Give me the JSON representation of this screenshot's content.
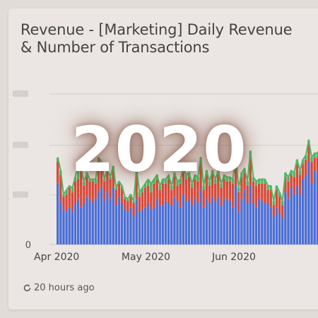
{
  "card": {
    "title_line1": "Revenue - [Marketing] Daily Revenue",
    "title_line2": "& Number of Transactions",
    "refresh_text": "20 hours ago",
    "refresh_icon": "refresh-icon"
  },
  "overlay": {
    "text": "2020"
  },
  "colors": {
    "background": "#e2dcd8",
    "card": "#ebe6e3",
    "bar_blue": "#4c6fd6",
    "bar_red": "#d94a3a",
    "line_green": "#4fb865",
    "gridline": "#d6cfcb"
  },
  "chart_data": {
    "type": "bar",
    "stacked": true,
    "x_tick_labels": [
      "Apr 2020",
      "May 2020",
      "Jun 2020"
    ],
    "y_tick_labels": [
      "0"
    ],
    "grid": true,
    "series": [],
    "blue_values": [
      28,
      20,
      16,
      15,
      17,
      15,
      19,
      21,
      17,
      19,
      22,
      21,
      19,
      21,
      24,
      26,
      20,
      24,
      21,
      26,
      18,
      22,
      19,
      16,
      15,
      17,
      13,
      21,
      15,
      16,
      17,
      19,
      16,
      17,
      21,
      18,
      18,
      20,
      19,
      18,
      22,
      20,
      17,
      23,
      20,
      21,
      18,
      21,
      19,
      25,
      17,
      21,
      19,
      22,
      20,
      22,
      18,
      21,
      21,
      20,
      17,
      27,
      15,
      21,
      25,
      19,
      27,
      19,
      17,
      21,
      20,
      19,
      19,
      17,
      13,
      17,
      14,
      12,
      24,
      21,
      26,
      23,
      27,
      23,
      30,
      32,
      38,
      28,
      34,
      33,
      33,
      32
    ],
    "red_values": [
      10,
      12,
      6,
      8,
      9,
      9,
      10,
      9,
      17,
      8,
      9,
      8,
      10,
      7,
      15,
      11,
      9,
      10,
      9,
      8,
      7,
      6,
      7,
      5,
      5,
      5,
      6,
      13,
      7,
      8,
      9,
      8,
      8,
      11,
      9,
      7,
      10,
      8,
      11,
      7,
      9,
      7,
      11,
      10,
      10,
      10,
      8,
      9,
      10,
      13,
      8,
      11,
      8,
      10,
      8,
      10,
      8,
      9,
      8,
      9,
      11,
      12,
      9,
      10,
      8,
      8,
      14,
      10,
      10,
      7,
      8,
      9,
      6,
      8,
      5,
      8,
      8,
      6,
      7,
      8,
      6,
      8,
      10,
      9,
      7,
      7,
      8,
      10,
      6,
      7,
      10,
      9
    ],
    "green_values": [
      2,
      2,
      1,
      2,
      1,
      2,
      2,
      7,
      1,
      2,
      2,
      1,
      1,
      2,
      1,
      1,
      1,
      1,
      1,
      2,
      1,
      1,
      1,
      1,
      1,
      1,
      1,
      1,
      2,
      2,
      2,
      3,
      4,
      2,
      2,
      2,
      2,
      2,
      2,
      2,
      2,
      2,
      2,
      2,
      2,
      2,
      2,
      2,
      2,
      2,
      2,
      2,
      2,
      2,
      2,
      2,
      2,
      2,
      2,
      2,
      2,
      2,
      2,
      2,
      2,
      2,
      2,
      2,
      2,
      2,
      2,
      2,
      2,
      2,
      2,
      2,
      2,
      2,
      2,
      2,
      2,
      2,
      2,
      2,
      2,
      2,
      2,
      2,
      2,
      2,
      2,
      2
    ],
    "ylim": [
      0,
      76
    ]
  }
}
